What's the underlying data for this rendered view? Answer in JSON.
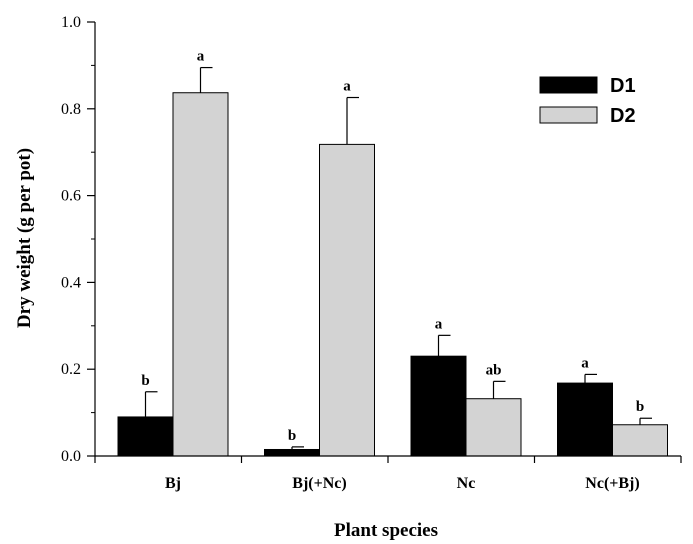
{
  "chart_data": {
    "type": "bar",
    "categories": [
      "Bj",
      "Bj(+Nc)",
      "Nc",
      "Nc(+Bj)"
    ],
    "series": [
      {
        "name": "D1",
        "color": "#000000",
        "values": [
          0.09,
          0.015,
          0.23,
          0.168
        ],
        "errors": [
          0.058,
          0.006,
          0.048,
          0.02
        ],
        "labels": [
          "b",
          "b",
          "a",
          "a"
        ]
      },
      {
        "name": "D2",
        "color": "#d3d3d3",
        "values": [
          0.837,
          0.718,
          0.132,
          0.072
        ],
        "errors": [
          0.058,
          0.108,
          0.04,
          0.015
        ],
        "labels": [
          "a",
          "a",
          "ab",
          "b"
        ]
      }
    ],
    "xlabel": "Plant species",
    "ylabel": "Dry weight (g per pot)",
    "ylim": [
      0,
      1.0
    ],
    "yticks": [
      "0.0",
      "0.2",
      "0.4",
      "0.6",
      "0.8",
      "1.0"
    ],
    "grid": false,
    "legend": "top-right"
  }
}
